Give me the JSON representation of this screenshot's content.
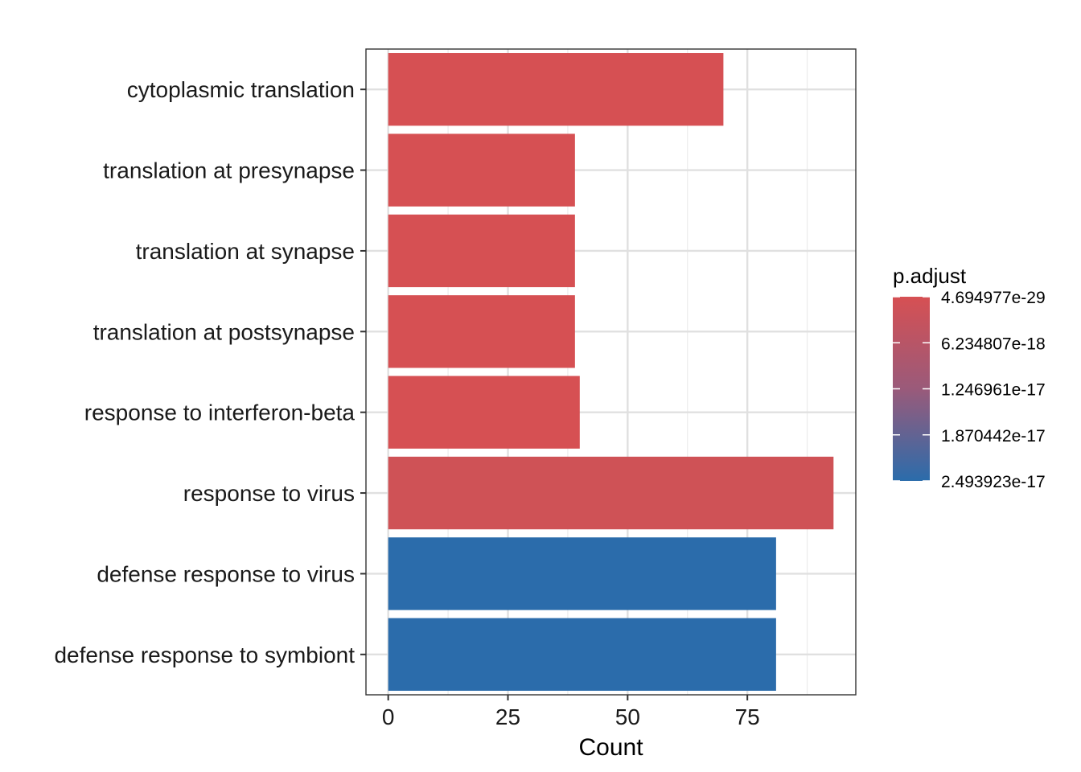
{
  "chart_data": {
    "type": "bar",
    "orientation": "horizontal",
    "categories": [
      "cytoplasmic translation",
      "translation at presynapse",
      "translation at synapse",
      "translation at postsynapse",
      "response to interferon-beta",
      "response to virus",
      "defense response to virus",
      "defense response to symbiont"
    ],
    "values": [
      70,
      39,
      39,
      39,
      40,
      93,
      81,
      81
    ],
    "p_adjust": [
      4.7e-29,
      1e-25,
      1e-25,
      1e-25,
      2e-20,
      1.5e-18,
      2.493923e-17,
      2.493923e-17
    ],
    "bar_colors": [
      "#d65053",
      "#d65053",
      "#d65053",
      "#d65053",
      "#d65053",
      "#cf5256",
      "#2b6cab",
      "#2b6cab"
    ],
    "xlabel": "Count",
    "ylabel": "",
    "xlim": [
      -4.65,
      97.65
    ],
    "x_ticks": [
      0,
      25,
      50,
      75
    ],
    "x_tick_labels": [
      "0",
      "25",
      "50",
      "75"
    ],
    "grid": true,
    "legend": {
      "title": "p.adjust",
      "placement": "right",
      "labels": [
        "4.694977e-29",
        "6.234807e-18",
        "1.246961e-17",
        "1.870442e-17",
        "2.493923e-17"
      ],
      "values": [
        4.694977e-29,
        6.234807e-18,
        1.246961e-17,
        1.870442e-17,
        2.493923e-17
      ],
      "colors": {
        "low": "#d65053",
        "mid": "#9a5a7a",
        "high": "#2b6cab"
      }
    }
  }
}
